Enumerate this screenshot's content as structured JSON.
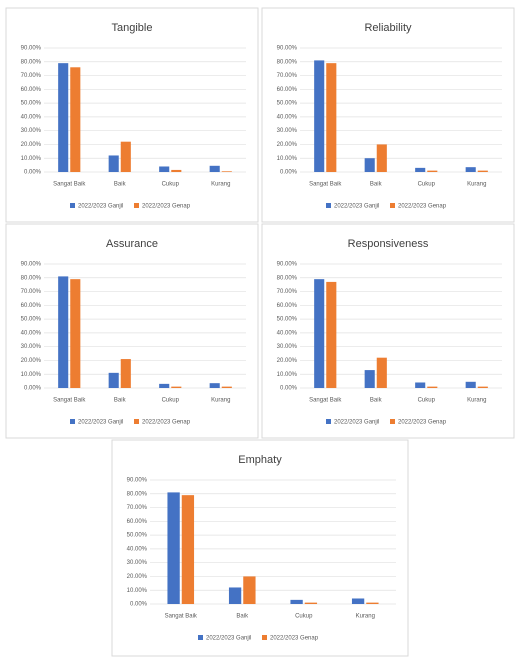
{
  "chart_data": [
    {
      "type": "bar",
      "title": "Tangible",
      "categories": [
        "Sangat Baik",
        "Baik",
        "Cukup",
        "Kurang"
      ],
      "series": [
        {
          "name": "2022/2023 Ganjil",
          "color": "#4472c4",
          "values": [
            79,
            12,
            4,
            4.5
          ]
        },
        {
          "name": "2022/2023 Genap",
          "color": "#ed7d31",
          "values": [
            76,
            22,
            1.5,
            0.5
          ]
        }
      ],
      "ylim": [
        0,
        90
      ],
      "yticks": [
        {
          "value": 0,
          "label": "0.00%"
        },
        {
          "value": 10,
          "label": "10.00%"
        },
        {
          "value": 20,
          "label": "20.00%"
        },
        {
          "value": 30,
          "label": "30.00%"
        },
        {
          "value": 40,
          "label": "40.00%"
        },
        {
          "value": 50,
          "label": "50.00%"
        },
        {
          "value": 60,
          "label": "60.00%"
        },
        {
          "value": 70,
          "label": "70.00%"
        },
        {
          "value": 80,
          "label": "80.00%"
        },
        {
          "value": 90,
          "label": "90.00%"
        }
      ],
      "grid": true,
      "legend": "bottom"
    },
    {
      "type": "bar",
      "title": "Reliability",
      "categories": [
        "Sangat Baik",
        "Baik",
        "Cukup",
        "Kurang"
      ],
      "series": [
        {
          "name": "2022/2023 Ganjil",
          "color": "#4472c4",
          "values": [
            81,
            10,
            3,
            3.5
          ]
        },
        {
          "name": "2022/2023 Genap",
          "color": "#ed7d31",
          "values": [
            79,
            20,
            1,
            1
          ]
        }
      ],
      "ylim": [
        0,
        90
      ],
      "yticks": [
        {
          "value": 0,
          "label": "0.00%"
        },
        {
          "value": 10,
          "label": "10.00%"
        },
        {
          "value": 20,
          "label": "20.00%"
        },
        {
          "value": 30,
          "label": "30.00%"
        },
        {
          "value": 40,
          "label": "40.00%"
        },
        {
          "value": 50,
          "label": "50.00%"
        },
        {
          "value": 60,
          "label": "60.00%"
        },
        {
          "value": 70,
          "label": "70.00%"
        },
        {
          "value": 80,
          "label": "80.00%"
        },
        {
          "value": 90,
          "label": "90.00%"
        }
      ],
      "grid": true,
      "legend": "bottom"
    },
    {
      "type": "bar",
      "title": "Assurance",
      "categories": [
        "Sangat Baik",
        "Baik",
        "Cukup",
        "Kurang"
      ],
      "series": [
        {
          "name": "2022/2023 Ganjil",
          "color": "#4472c4",
          "values": [
            81,
            11,
            3,
            3.5
          ]
        },
        {
          "name": "2022/2023 Genap",
          "color": "#ed7d31",
          "values": [
            79,
            21,
            1,
            1
          ]
        }
      ],
      "ylim": [
        0,
        90
      ],
      "yticks": [
        {
          "value": 0,
          "label": "0.00%"
        },
        {
          "value": 10,
          "label": "10.00%"
        },
        {
          "value": 20,
          "label": "20.00%"
        },
        {
          "value": 30,
          "label": "30.00%"
        },
        {
          "value": 40,
          "label": "40.00%"
        },
        {
          "value": 50,
          "label": "50.00%"
        },
        {
          "value": 60,
          "label": "60.00%"
        },
        {
          "value": 70,
          "label": "70.00%"
        },
        {
          "value": 80,
          "label": "80.00%"
        },
        {
          "value": 90,
          "label": "90.00%"
        }
      ],
      "grid": true,
      "legend": "bottom"
    },
    {
      "type": "bar",
      "title": "Responsiveness",
      "categories": [
        "Sangat Baik",
        "Baik",
        "Cukup",
        "Kurang"
      ],
      "series": [
        {
          "name": "2022/2023 Ganjil",
          "color": "#4472c4",
          "values": [
            79,
            13,
            4,
            4.5
          ]
        },
        {
          "name": "2022/2023 Genap",
          "color": "#ed7d31",
          "values": [
            77,
            22,
            1,
            1
          ]
        }
      ],
      "ylim": [
        0,
        90
      ],
      "yticks": [
        {
          "value": 0,
          "label": "0.00%"
        },
        {
          "value": 10,
          "label": "10.00%"
        },
        {
          "value": 20,
          "label": "20.00%"
        },
        {
          "value": 30,
          "label": "30.00%"
        },
        {
          "value": 40,
          "label": "40.00%"
        },
        {
          "value": 50,
          "label": "50.00%"
        },
        {
          "value": 60,
          "label": "60.00%"
        },
        {
          "value": 70,
          "label": "70.00%"
        },
        {
          "value": 80,
          "label": "80.00%"
        },
        {
          "value": 90,
          "label": "90.00%"
        }
      ],
      "grid": true,
      "legend": "bottom"
    },
    {
      "type": "bar",
      "title": "Emphaty",
      "categories": [
        "Sangat Baik",
        "Baik",
        "Cukup",
        "Kurang"
      ],
      "series": [
        {
          "name": "2022/2023 Ganjil",
          "color": "#4472c4",
          "values": [
            81,
            12,
            3,
            4
          ]
        },
        {
          "name": "2022/2023 Genap",
          "color": "#ed7d31",
          "values": [
            79,
            20,
            1,
            1
          ]
        }
      ],
      "ylim": [
        0,
        90
      ],
      "yticks": [
        {
          "value": 0,
          "label": "0.00%"
        },
        {
          "value": 10,
          "label": "10.00%"
        },
        {
          "value": 20,
          "label": "20.00%"
        },
        {
          "value": 30,
          "label": "30.00%"
        },
        {
          "value": 40,
          "label": "40.00%"
        },
        {
          "value": 50,
          "label": "50.00%"
        },
        {
          "value": 60,
          "label": "60.00%"
        },
        {
          "value": 70,
          "label": "70.00%"
        },
        {
          "value": 80,
          "label": "80.00%"
        },
        {
          "value": 90,
          "label": "90.00%"
        }
      ],
      "grid": true,
      "legend": "bottom"
    }
  ]
}
